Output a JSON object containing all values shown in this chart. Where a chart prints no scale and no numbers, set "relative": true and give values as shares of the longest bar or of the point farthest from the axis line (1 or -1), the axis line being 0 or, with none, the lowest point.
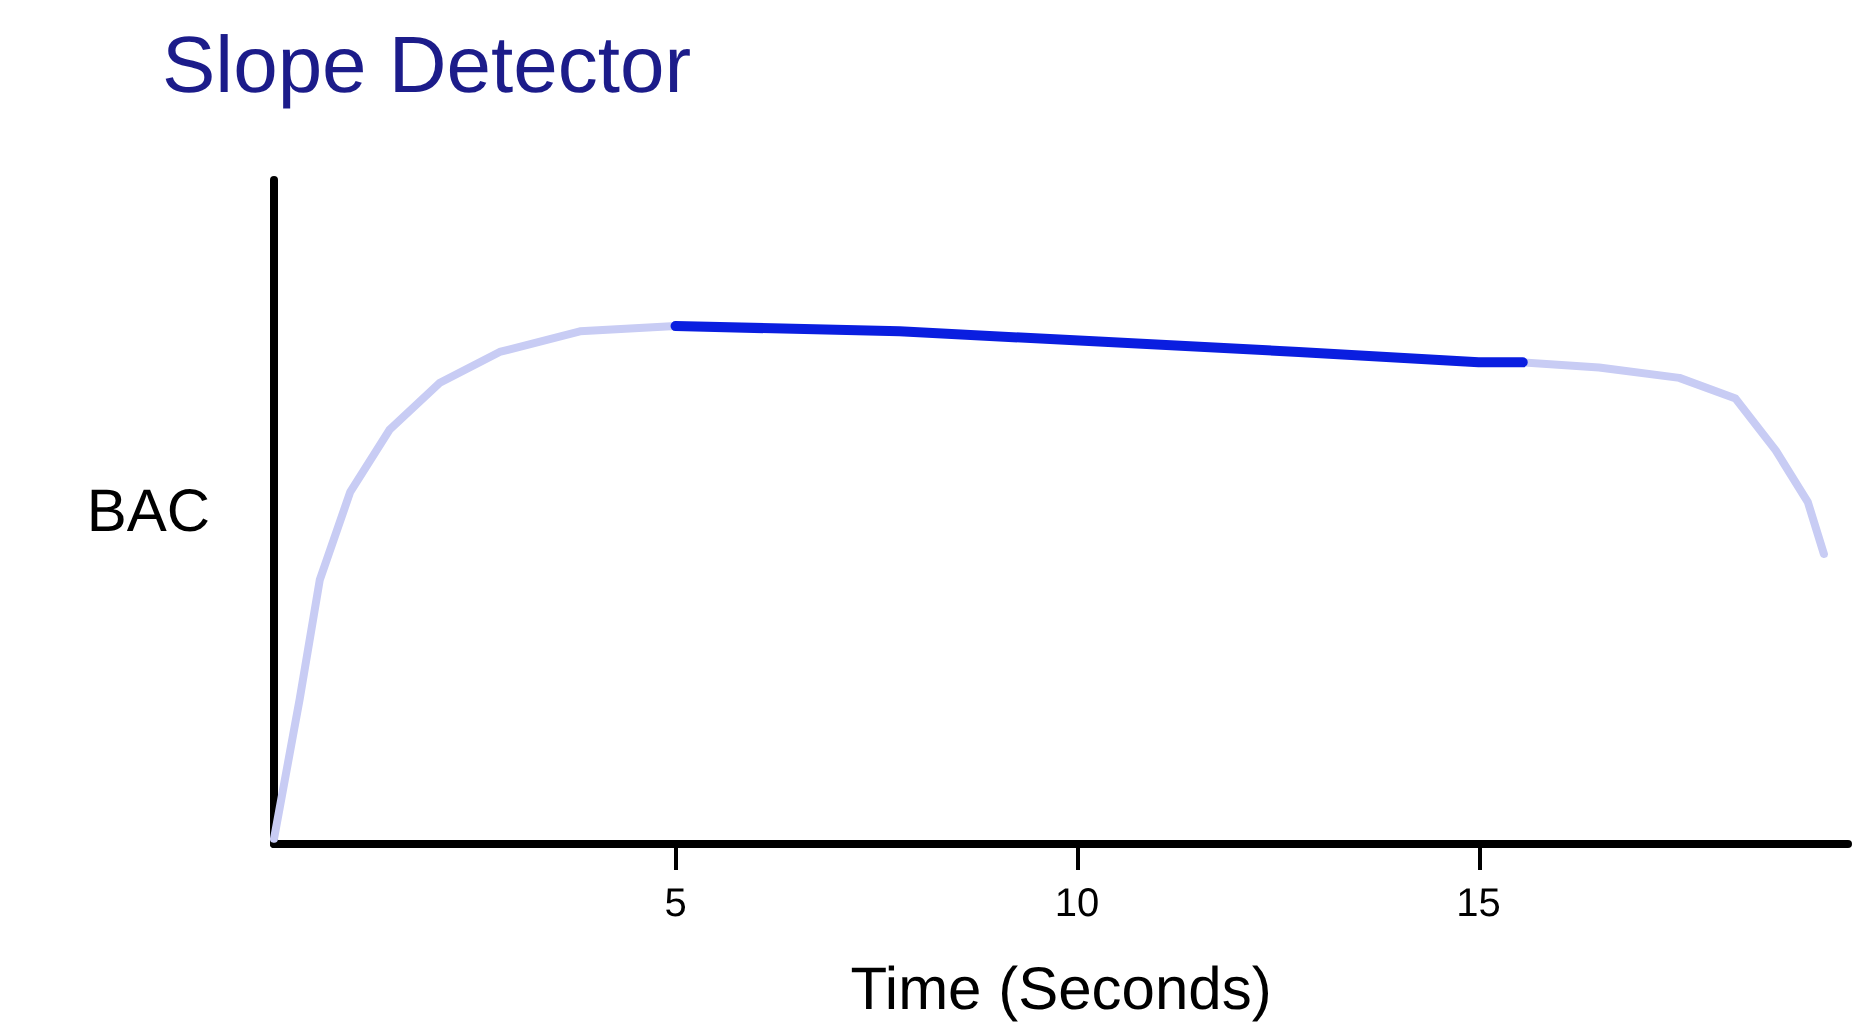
{
  "chart_data": {
    "type": "line",
    "title": "Slope Detector",
    "xlabel": "Time (Seconds)",
    "ylabel": "BAC",
    "relative": true,
    "xlim": [
      0,
      19.6
    ],
    "xticks": [
      5,
      10,
      15
    ],
    "grid": false,
    "marker": "none",
    "line_style": "solid",
    "series": [
      {
        "color": "#c8ccf4",
        "x": [
          0,
          0.32,
          0.57,
          0.95,
          1.44,
          2.06,
          2.81,
          3.81,
          5,
          7.79,
          10.27,
          12.76,
          15,
          15.55,
          16.5,
          17.5,
          18.2,
          18.7,
          19.1,
          19.3
        ],
        "values": [
          0.01,
          0.28,
          0.51,
          0.68,
          0.8,
          0.89,
          0.95,
          0.99,
          1,
          0.99,
          0.97,
          0.95,
          0.93,
          0.93,
          0.92,
          0.9,
          0.86,
          0.76,
          0.66,
          0.56
        ]
      },
      {
        "color": "#0a1ee0",
        "x": [
          5,
          7.79,
          10.27,
          12.76,
          15,
          15.55
        ],
        "values": [
          1,
          0.99,
          0.97,
          0.95,
          0.93,
          0.93
        ]
      }
    ]
  }
}
